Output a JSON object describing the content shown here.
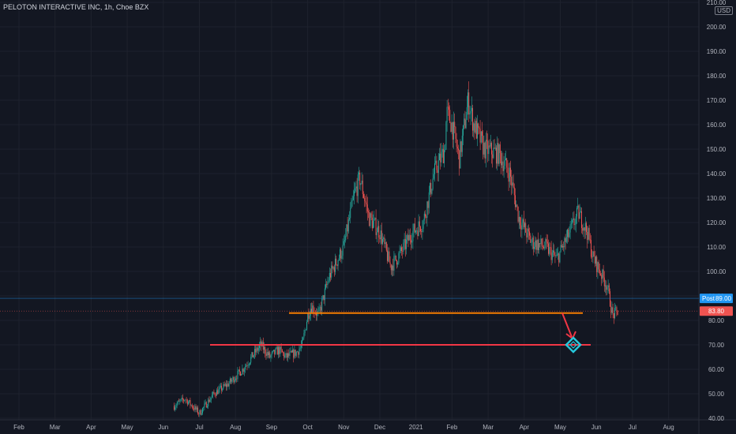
{
  "title": "PELOTON INTERACTIVE INC, 1h, Choe BZX",
  "currency": "USD",
  "colors": {
    "background": "#131722",
    "grid": "#1e222d",
    "up": "#26a69a",
    "down": "#ef5350",
    "axis_text": "#b2b5be",
    "orange_line": "#f57c00",
    "red_line": "#f23645",
    "post_label": "#2196f3",
    "price_label": "#ef5350",
    "target_marker": "#26c6da"
  },
  "chart_data": {
    "type": "candlestick",
    "title": "PELOTON INTERACTIVE INC, 1h, Choe BZX",
    "xlabel": "",
    "ylabel": "",
    "ylim": [
      40,
      210
    ],
    "grid": true,
    "x_ticks": [
      "Feb",
      "Mar",
      "Apr",
      "May",
      "Jun",
      "Jul",
      "Aug",
      "Sep",
      "Oct",
      "Nov",
      "Dec",
      "2021",
      "Feb",
      "Mar",
      "Apr",
      "May",
      "Jun",
      "Jul",
      "Aug"
    ],
    "y_ticks": [
      "210.00",
      "200.00",
      "190.00",
      "180.00",
      "170.00",
      "160.00",
      "150.00",
      "140.00",
      "130.00",
      "120.00",
      "110.00",
      "100.00",
      "90.00",
      "80.00",
      "70.00",
      "60.00",
      "50.00",
      "40.00"
    ],
    "price_path": [
      [
        4.3,
        45
      ],
      [
        4.6,
        48
      ],
      [
        5.0,
        42
      ],
      [
        5.4,
        50
      ],
      [
        5.8,
        54
      ],
      [
        6.2,
        60
      ],
      [
        6.5,
        66
      ],
      [
        6.7,
        70
      ],
      [
        6.95,
        65
      ],
      [
        7.2,
        68
      ],
      [
        7.4,
        65
      ],
      [
        7.7,
        67
      ],
      [
        7.85,
        70
      ],
      [
        8.0,
        82
      ],
      [
        8.1,
        86
      ],
      [
        8.3,
        82
      ],
      [
        8.6,
        98
      ],
      [
        9.0,
        110
      ],
      [
        9.3,
        132
      ],
      [
        9.45,
        138
      ],
      [
        9.7,
        122
      ],
      [
        10.0,
        116
      ],
      [
        10.3,
        102
      ],
      [
        10.6,
        108
      ],
      [
        10.9,
        116
      ],
      [
        11.2,
        120
      ],
      [
        11.5,
        140
      ],
      [
        11.8,
        150
      ],
      [
        11.85,
        165
      ],
      [
        12.0,
        160
      ],
      [
        12.2,
        146
      ],
      [
        12.45,
        170
      ],
      [
        12.6,
        160
      ],
      [
        12.9,
        150
      ],
      [
        13.3,
        148
      ],
      [
        13.6,
        140
      ],
      [
        13.85,
        122
      ],
      [
        14.2,
        112
      ],
      [
        14.6,
        110
      ],
      [
        14.9,
        105
      ],
      [
        15.2,
        114
      ],
      [
        15.5,
        124
      ],
      [
        15.75,
        116
      ],
      [
        15.9,
        106
      ],
      [
        16.1,
        100
      ],
      [
        16.3,
        94
      ],
      [
        16.45,
        82
      ],
      [
        16.6,
        83.8
      ]
    ],
    "horizontal_levels": [
      {
        "value": 83,
        "color": "orange"
      },
      {
        "value": 70,
        "color": "red"
      }
    ],
    "post_market": {
      "label": "Post",
      "value": "89.00"
    },
    "last_price": {
      "value": "83.80"
    },
    "target_marker_value": 70
  }
}
